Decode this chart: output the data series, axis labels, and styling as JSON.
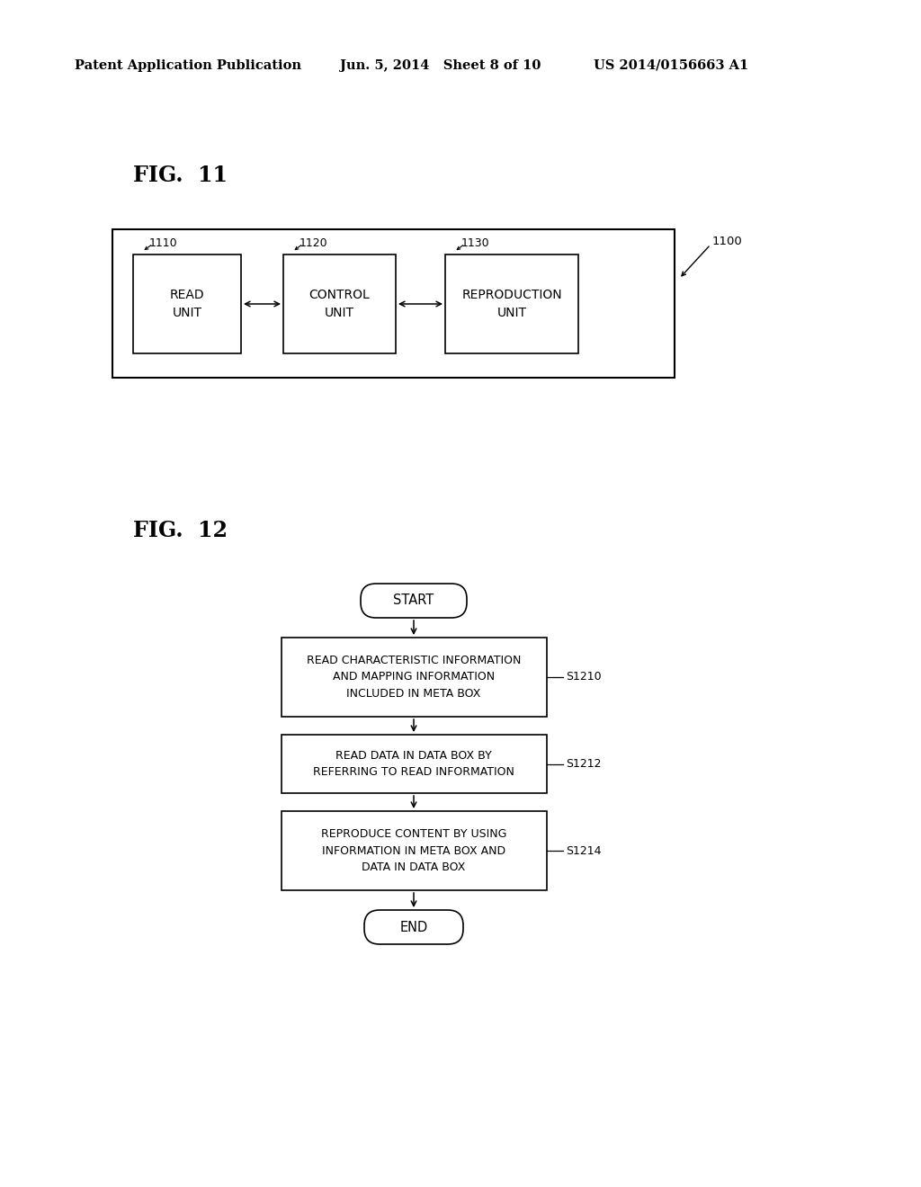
{
  "bg_color": "#ffffff",
  "header_left": "Patent Application Publication",
  "header_mid": "Jun. 5, 2014   Sheet 8 of 10",
  "header_right": "US 2014/0156663 A1",
  "fig11_label": "FIG.  11",
  "fig12_label": "FIG.  12",
  "fig11_ref_1100": "1100",
  "fig11_ref_1110": "1110",
  "fig11_ref_1120": "1120",
  "fig11_ref_1130": "1130",
  "fig11_box1_label": "READ\nUNIT",
  "fig11_box2_label": "CONTROL\nUNIT",
  "fig11_box3_label": "REPRODUCTION\nUNIT",
  "fig12_start_label": "START",
  "fig12_end_label": "END",
  "fig12_box1_label": "READ CHARACTERISTIC INFORMATION\nAND MAPPING INFORMATION\nINCLUDED IN META BOX",
  "fig12_box2_label": "READ DATA IN DATA BOX BY\nREFERRING TO READ INFORMATION",
  "fig12_box3_label": "REPRODUCE CONTENT BY USING\nINFORMATION IN META BOX AND\nDATA IN DATA BOX",
  "fig12_ref_s1210": "S1210",
  "fig12_ref_s1212": "S1212",
  "fig12_ref_s1214": "S1214",
  "text_color": "#000000",
  "box_edge_color": "#000000",
  "box_face_color": "#ffffff",
  "arrow_color": "#000000"
}
